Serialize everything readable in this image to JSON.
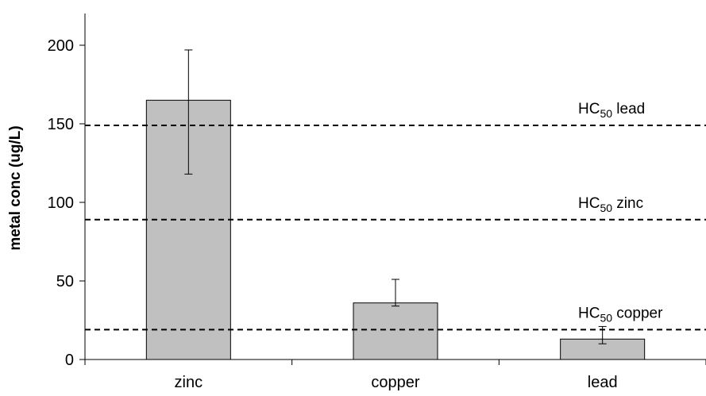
{
  "chart_data": {
    "type": "bar",
    "title": "",
    "xlabel": "",
    "ylabel": "metal conc (ug/L)",
    "categories": [
      "zinc",
      "copper",
      "lead"
    ],
    "values": [
      165,
      36,
      13
    ],
    "error_low": [
      118,
      34,
      10
    ],
    "error_high": [
      197,
      51,
      21
    ],
    "ylim": [
      0,
      200
    ],
    "yticks": [
      0,
      50,
      100,
      150,
      200
    ],
    "grid": false,
    "legend": "none",
    "bar_color": "#c0c0c0",
    "reference_lines": [
      {
        "value": 149,
        "label_main": "HC",
        "label_sub": "50",
        "label_rest": " lead"
      },
      {
        "value": 89,
        "label_main": "HC",
        "label_sub": "50",
        "label_rest": " zinc"
      },
      {
        "value": 19,
        "label_main": "HC",
        "label_sub": "50",
        "label_rest": " copper"
      }
    ]
  }
}
